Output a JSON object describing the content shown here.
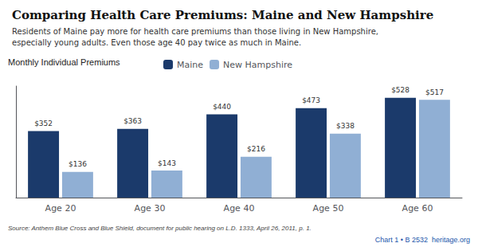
{
  "chart_data": {
    "type": "bar",
    "title": "Comparing Health Care Premiums: Maine and New Hampshire",
    "subtitle": "Residents of Maine pay more for health care premiums than those living in New Hampshire,\nespecially young adults. Even those age 40 pay twice as much in Maine.",
    "annotations": [
      "Monthly Individual Premiums",
      "Source: Anthem Blue Cross and Blue Shield, document for public hearing on L.D. 1333, April 26, 2011, p. 1.",
      "Chart 1 • B 2532  heritage.org"
    ],
    "categories": [
      "Age 20",
      "Age 30",
      "Age 40",
      "Age 50",
      "Age 60"
    ],
    "series": [
      {
        "name": "Maine",
        "color": "#1b3a6b",
        "values": [
          352,
          363,
          440,
          473,
          528
        ],
        "value_labels": [
          "$352",
          "$363",
          "$440",
          "$473",
          "$528"
        ]
      },
      {
        "name": "New Hampshire",
        "color": "#90afd4",
        "values": [
          136,
          143,
          216,
          338,
          517
        ],
        "value_labels": [
          "$136",
          "$143",
          "$216",
          "$338",
          "$517"
        ]
      }
    ],
    "ylim": [
      0,
      590
    ],
    "data_labels": true,
    "tick_labels": "x",
    "grid": false,
    "legend": "top"
  }
}
